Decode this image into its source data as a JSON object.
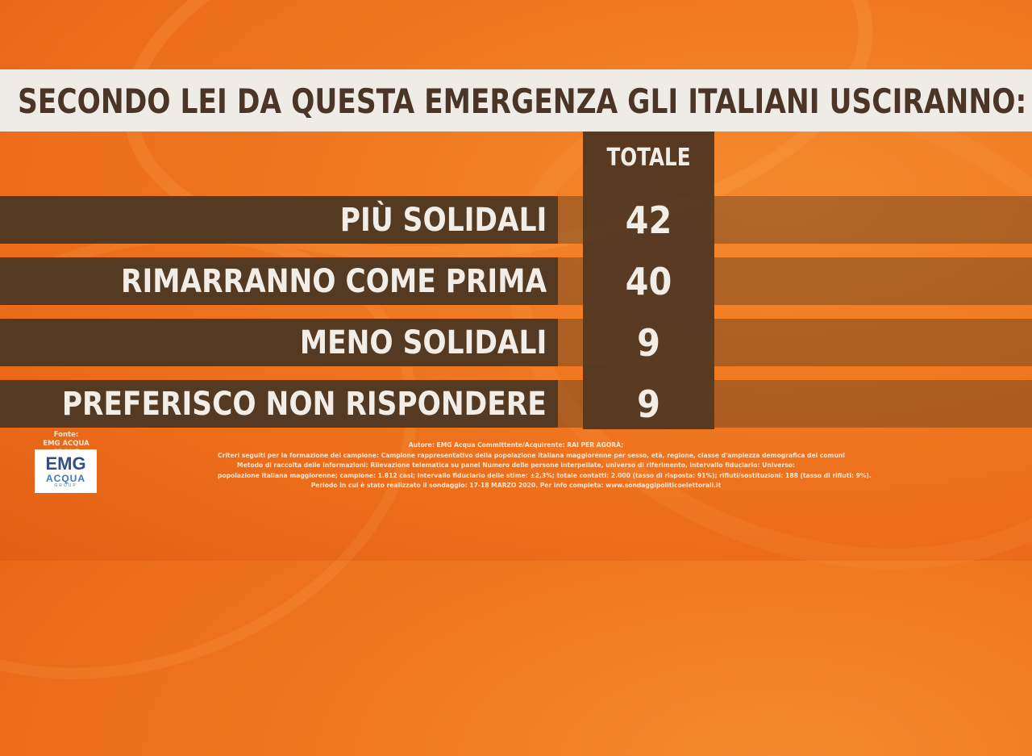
{
  "chart_data": {
    "type": "table",
    "title": "SECONDO LEI DA QUESTA EMERGENZA GLI ITALIANI USCIRANNO:",
    "column_header": "TOTALE",
    "categories": [
      "PIÙ SOLIDALI",
      "RIMARRANNO COME PRIMA",
      "MENO SOLIDALI",
      "PREFERISCO NON RISPONDERE"
    ],
    "series": [
      {
        "name": "TOTALE",
        "values": [
          42,
          40,
          9,
          9
        ]
      }
    ]
  },
  "source": {
    "label": "Fonte:",
    "name": "EMG ACQUA GROUP",
    "logo_main": "EMG",
    "logo_sub": "ACQUA",
    "logo_group": "GROUP"
  },
  "notes": [
    "Autore: EMG Acqua Committente/Acquirente: RAI PER AGORÀ;",
    "Criteri seguiti per la formazione del campione: Campione rappresentativo della popolazione italiana maggiorenne per sesso, età, regione, classe d'ampiezza demografica dei comuni",
    "Metodo di raccolta delle informazioni: Rilevazione telematica su panel Numero delle persone interpellate, universo di riferimento, intervallo fiduciario: Universo:",
    "popolazione italiana maggiorenne; campione: 1.812 casi; intervallo fiduciario delle stime: ±2,3%; totale contatti: 2.000 (tasso di risposta: 91%); rifiuti/sostituzioni: 188 (tasso di rifiuti: 9%).",
    "Periodo in cui è stato realizzato il sondaggio: 17-18 MARZO 2020. Per info completa: www.sondaggipoliticoelettorali.it"
  ]
}
